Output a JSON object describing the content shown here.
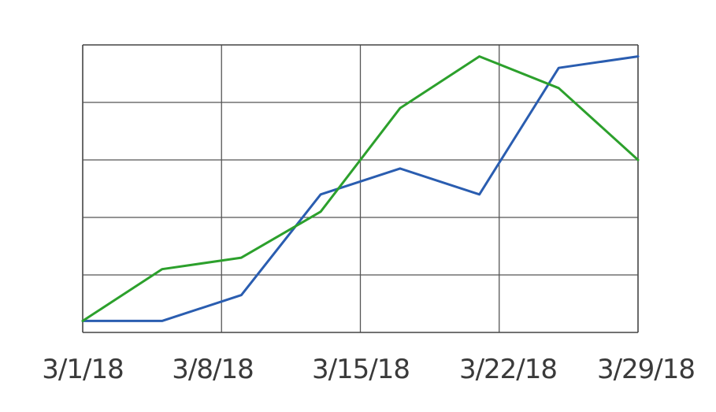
{
  "chart_data": {
    "type": "line",
    "x_ticks": [
      "3/1/18",
      "3/8/18",
      "3/15/18",
      "3/22/18",
      "3/29/18"
    ],
    "x_range": [
      "2018-03-01",
      "2018-03-29"
    ],
    "y_range": [
      0,
      5
    ],
    "y_ticks_labeled": false,
    "grid": true,
    "legend": "none",
    "series": [
      {
        "color": "#2a5db0",
        "x": [
          "2018-03-01",
          "2018-03-05",
          "2018-03-09",
          "2018-03-13",
          "2018-03-17",
          "2018-03-21",
          "2018-03-25",
          "2018-03-29"
        ],
        "y": [
          0.2,
          0.2,
          0.65,
          2.4,
          2.85,
          2.4,
          4.6,
          4.8
        ]
      },
      {
        "color": "#2ca02c",
        "x": [
          "2018-03-01",
          "2018-03-05",
          "2018-03-09",
          "2018-03-13",
          "2018-03-17",
          "2018-03-21",
          "2018-03-25",
          "2018-03-29"
        ],
        "y": [
          0.2,
          1.1,
          1.3,
          2.1,
          3.9,
          4.8,
          4.25,
          3.0
        ]
      }
    ]
  }
}
